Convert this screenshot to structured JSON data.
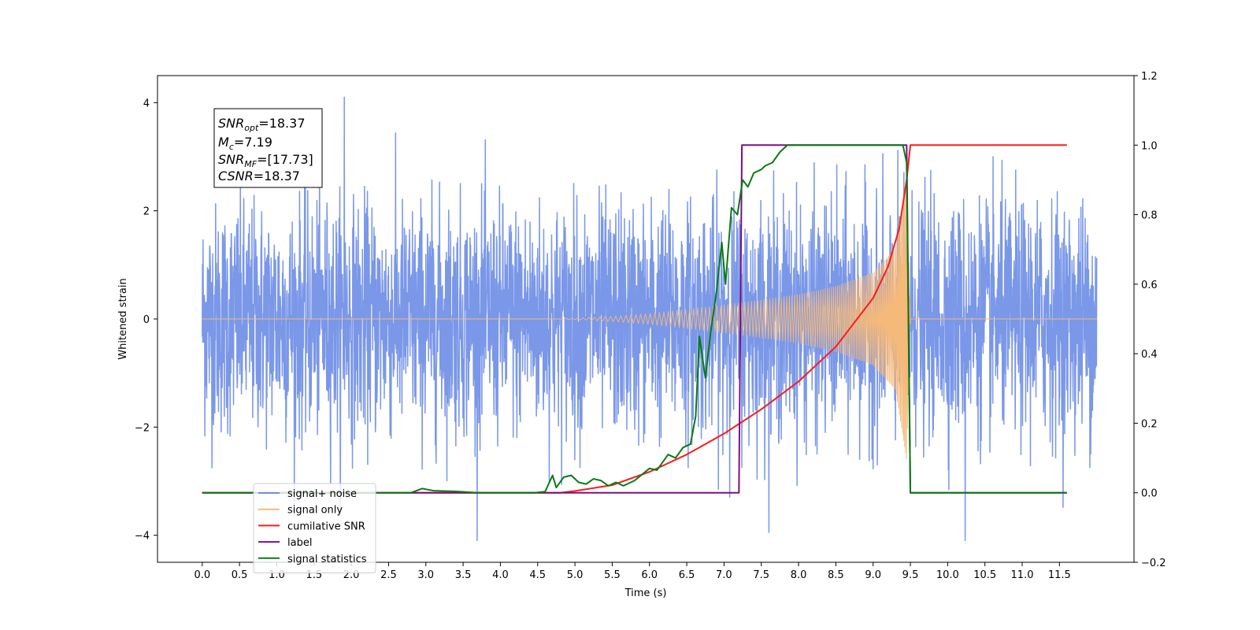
{
  "chart_data": {
    "type": "line",
    "xlabel": "Time (s)",
    "ylabel": "Whitened strain",
    "xlim": [
      -0.6,
      12.5
    ],
    "ylim": [
      -4.5,
      4.5
    ],
    "y2lim": [
      -0.2,
      1.2
    ],
    "x_ticks": [
      "0.0",
      "0.5",
      "1.0",
      "1.5",
      "2.0",
      "2.5",
      "3.0",
      "3.5",
      "4.0",
      "4.5",
      "5.0",
      "5.5",
      "6.0",
      "6.5",
      "7.0",
      "7.5",
      "8.0",
      "8.5",
      "9.0",
      "9.5",
      "10.0",
      "10.5",
      "11.0",
      "11.5"
    ],
    "y_ticks": [
      "4",
      "2",
      "0",
      "−2",
      "−4"
    ],
    "y2_ticks": [
      "1.2",
      "1.0",
      "0.8",
      "0.6",
      "0.4",
      "0.2",
      "0.0",
      "−0.2"
    ],
    "legend_placement": "lower-left",
    "grid": false,
    "annotation": {
      "snr_opt": {
        "base": "SNR",
        "sub": "opt",
        "rest": "=18.37"
      },
      "mc": {
        "base": "M",
        "sub": "c",
        "rest": "=7.19"
      },
      "snr_mf": {
        "base": "SNR",
        "sub": "MF",
        "rest": "=[17.73]"
      },
      "csnr": {
        "base": "CSNR",
        "sub": "",
        "rest": "=18.37"
      }
    },
    "series": [
      {
        "name": "signal+ noise",
        "color": "#6f8ee6",
        "axis": "left",
        "kind": "noise",
        "x_range": [
          0.0,
          12.0
        ],
        "std": 1.05,
        "peak_max": 4.1,
        "peak_min": -4.1
      },
      {
        "name": "signal only",
        "color": "#f5b97a",
        "axis": "left",
        "kind": "chirp",
        "x_range": [
          0.0,
          12.0
        ],
        "chirp_start": 4.8,
        "chirp_end": 9.5,
        "envelope_points": [
          [
            4.8,
            0.0
          ],
          [
            5.5,
            0.05
          ],
          [
            6.0,
            0.1
          ],
          [
            6.5,
            0.18
          ],
          [
            7.0,
            0.26
          ],
          [
            7.5,
            0.35
          ],
          [
            8.0,
            0.45
          ],
          [
            8.5,
            0.6
          ],
          [
            9.0,
            0.85
          ],
          [
            9.3,
            1.3
          ],
          [
            9.45,
            2.6
          ],
          [
            9.5,
            0.0
          ]
        ]
      },
      {
        "name": "cumilative SNR",
        "color": "#ff1a1a",
        "axis": "right",
        "points": [
          [
            0.0,
            0.0
          ],
          [
            4.8,
            0.0
          ],
          [
            5.0,
            0.005
          ],
          [
            5.5,
            0.022
          ],
          [
            6.0,
            0.06
          ],
          [
            6.5,
            0.11
          ],
          [
            7.0,
            0.17
          ],
          [
            7.5,
            0.24
          ],
          [
            8.0,
            0.32
          ],
          [
            8.5,
            0.42
          ],
          [
            9.0,
            0.56
          ],
          [
            9.2,
            0.65
          ],
          [
            9.35,
            0.76
          ],
          [
            9.45,
            0.9
          ],
          [
            9.5,
            1.0
          ],
          [
            11.6,
            1.0
          ]
        ]
      },
      {
        "name": "label",
        "color": "#7b1080",
        "axis": "right",
        "points": [
          [
            0.0,
            0.0
          ],
          [
            7.2,
            0.0
          ],
          [
            7.24,
            1.0
          ],
          [
            9.45,
            1.0
          ],
          [
            9.5,
            0.0
          ],
          [
            11.6,
            0.0
          ]
        ]
      },
      {
        "name": "signal statistics",
        "color": "#0a7a14",
        "axis": "right",
        "points": [
          [
            0.0,
            0.0
          ],
          [
            2.8,
            0.0
          ],
          [
            2.95,
            0.012
          ],
          [
            3.1,
            0.006
          ],
          [
            3.4,
            0.004
          ],
          [
            3.7,
            0.0
          ],
          [
            4.45,
            0.0
          ],
          [
            4.6,
            0.003
          ],
          [
            4.7,
            0.05
          ],
          [
            4.75,
            0.015
          ],
          [
            4.85,
            0.045
          ],
          [
            4.95,
            0.05
          ],
          [
            5.05,
            0.03
          ],
          [
            5.15,
            0.025
          ],
          [
            5.25,
            0.04
          ],
          [
            5.35,
            0.035
          ],
          [
            5.45,
            0.02
          ],
          [
            5.55,
            0.03
          ],
          [
            5.65,
            0.02
          ],
          [
            5.8,
            0.035
          ],
          [
            6.0,
            0.07
          ],
          [
            6.1,
            0.065
          ],
          [
            6.25,
            0.11
          ],
          [
            6.35,
            0.1
          ],
          [
            6.45,
            0.13
          ],
          [
            6.55,
            0.14
          ],
          [
            6.62,
            0.22
          ],
          [
            6.67,
            0.45
          ],
          [
            6.75,
            0.33
          ],
          [
            6.82,
            0.46
          ],
          [
            6.9,
            0.58
          ],
          [
            6.97,
            0.72
          ],
          [
            7.02,
            0.6
          ],
          [
            7.1,
            0.82
          ],
          [
            7.18,
            0.8
          ],
          [
            7.25,
            0.9
          ],
          [
            7.32,
            0.88
          ],
          [
            7.4,
            0.92
          ],
          [
            7.5,
            0.93
          ],
          [
            7.55,
            0.94
          ],
          [
            7.65,
            0.95
          ],
          [
            7.75,
            0.98
          ],
          [
            7.85,
            1.0
          ],
          [
            9.4,
            1.0
          ],
          [
            9.45,
            0.95
          ],
          [
            9.5,
            0.0
          ],
          [
            11.6,
            0.0
          ]
        ]
      }
    ]
  }
}
